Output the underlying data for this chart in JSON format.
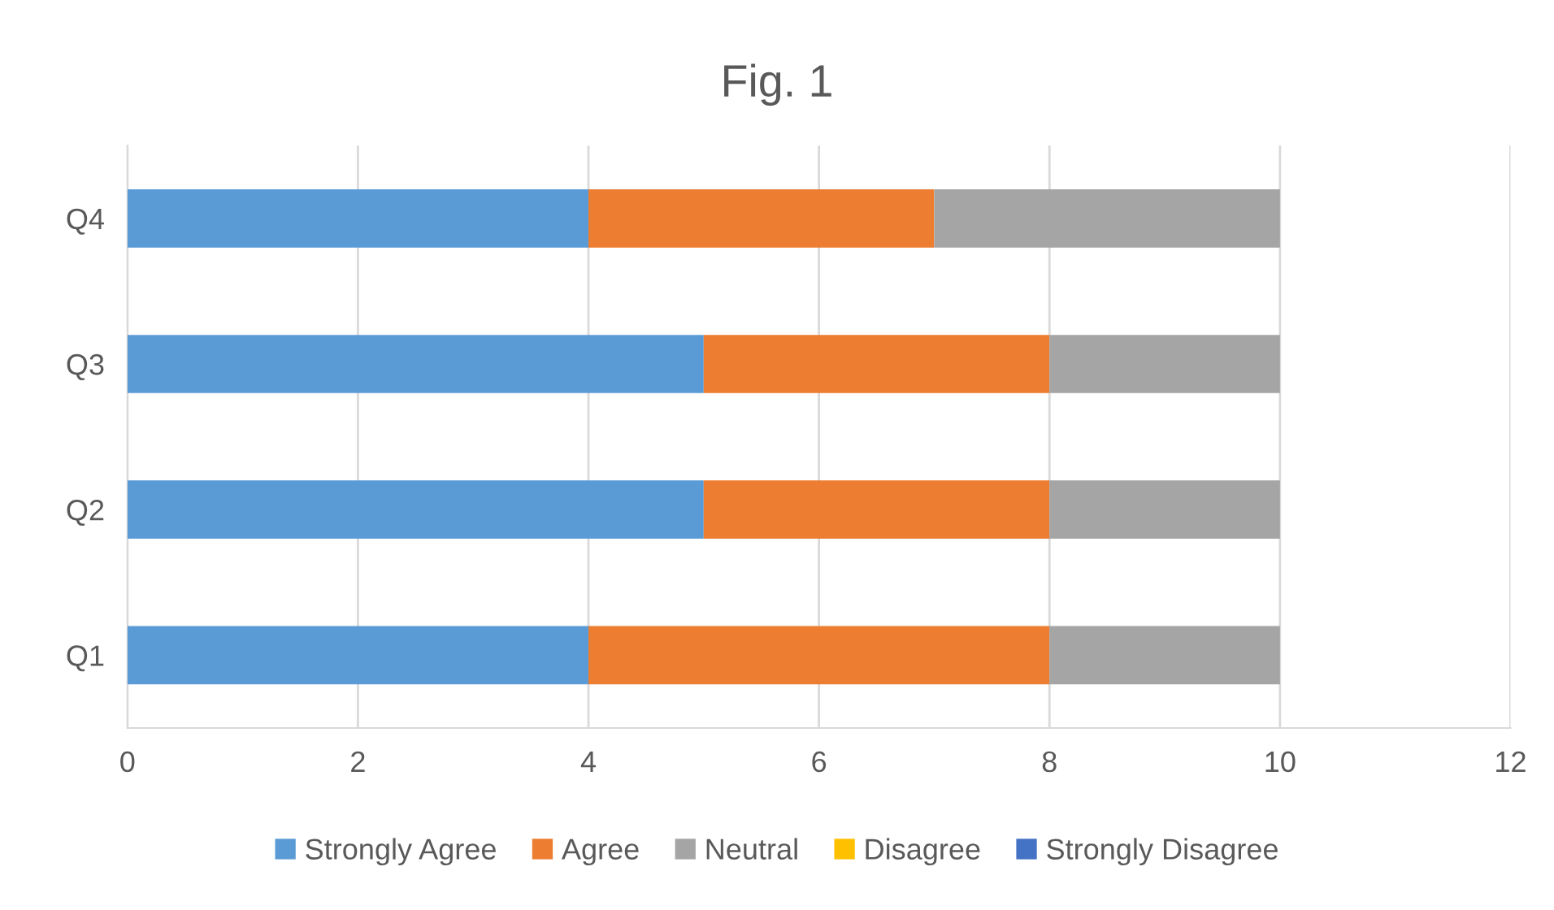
{
  "chart_data": {
    "type": "bar",
    "title": "Fig. 1",
    "orientation": "horizontal",
    "stacked": true,
    "categories": [
      "Q4",
      "Q3",
      "Q2",
      "Q1"
    ],
    "series": [
      {
        "name": "Strongly Agree",
        "color": "#5b9bd5",
        "values": [
          4,
          5,
          5,
          4
        ]
      },
      {
        "name": "Agree",
        "color": "#ed7d31",
        "values": [
          3,
          3,
          3,
          4
        ]
      },
      {
        "name": "Neutral",
        "color": "#a5a5a5",
        "values": [
          3,
          2,
          2,
          2
        ]
      },
      {
        "name": "Disagree",
        "color": "#ffc000",
        "values": [
          0,
          0,
          0,
          0
        ]
      },
      {
        "name": "Strongly Disagree",
        "color": "#4472c4",
        "values": [
          0,
          0,
          0,
          0
        ]
      }
    ],
    "xlim": [
      0,
      12
    ],
    "xticks": [
      0,
      2,
      4,
      6,
      8,
      10,
      12
    ],
    "grid": "x",
    "legend": "bottom"
  }
}
